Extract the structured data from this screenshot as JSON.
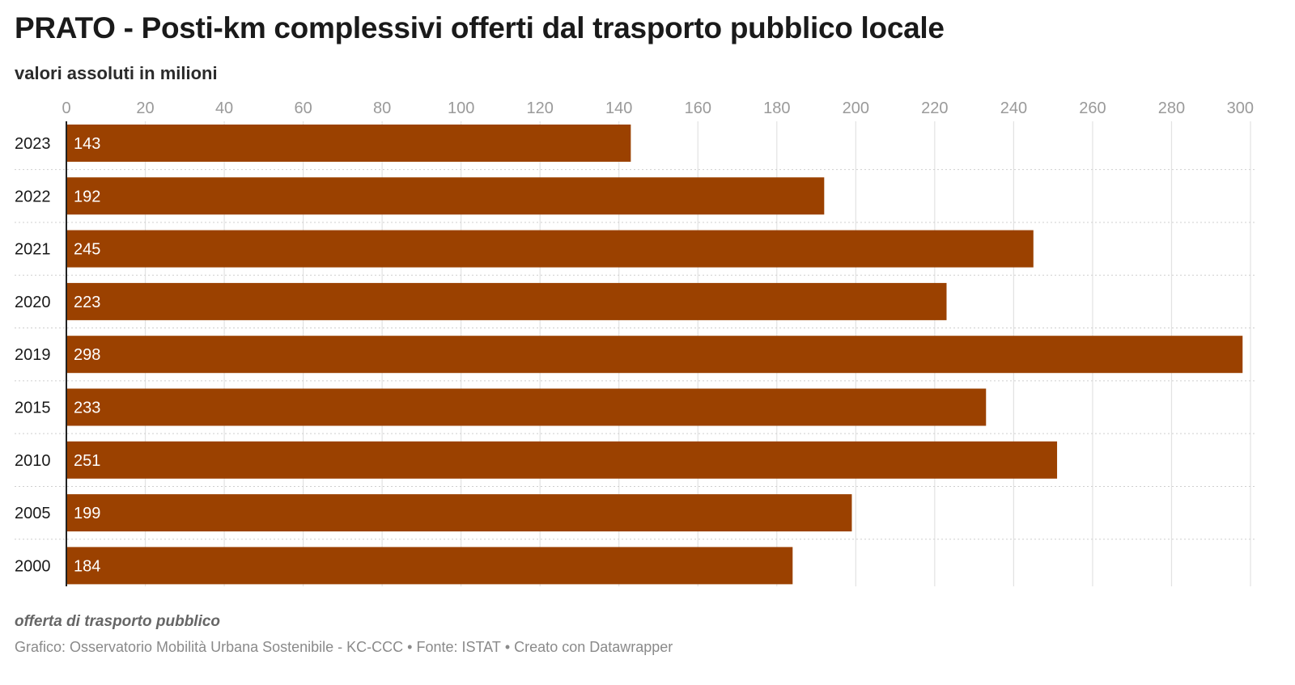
{
  "title": "PRATO - Posti-km complessivi offerti dal trasporto pubblico locale",
  "subtitle": "valori assoluti in milioni",
  "notes": "offerta di trasporto pubblico",
  "credits": {
    "chart_by": "Grafico: Osservatorio Mobilità Urbana Sostenibile - KC-CCC",
    "source": "Fonte: ISTAT",
    "tool": "Creato con Datawrapper",
    "separator": "•"
  },
  "colors": {
    "bar": "#9b4100",
    "grid": "#e2e2e2",
    "tick_text": "#9a9a9a"
  },
  "chart_data": {
    "type": "bar",
    "orientation": "horizontal",
    "title": "PRATO - Posti-km complessivi offerti dal trasporto pubblico locale",
    "subtitle": "valori assoluti in milioni",
    "categories": [
      "2023",
      "2022",
      "2021",
      "2020",
      "2019",
      "2015",
      "2010",
      "2005",
      "2000"
    ],
    "values": [
      143,
      192,
      245,
      223,
      298,
      233,
      251,
      199,
      184
    ],
    "xlim": [
      0,
      300
    ],
    "x_ticks": [
      0,
      20,
      40,
      60,
      80,
      100,
      120,
      140,
      160,
      180,
      200,
      220,
      240,
      260,
      280,
      300
    ],
    "axis_position": "top",
    "grid": true,
    "data_labels": "inside-left"
  }
}
